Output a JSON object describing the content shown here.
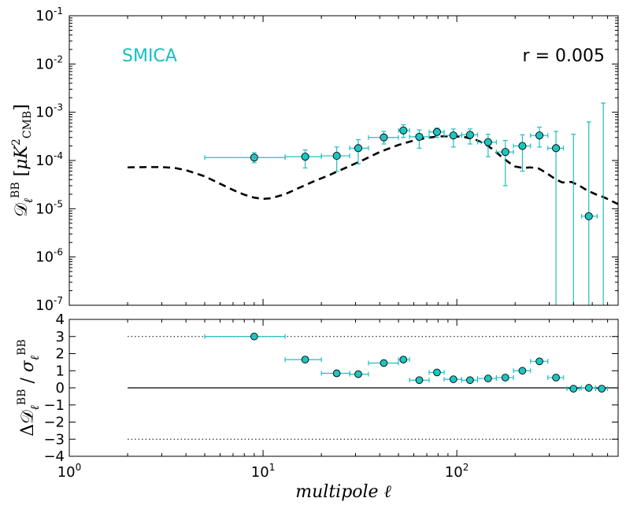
{
  "colors": {
    "marker": "#1fc4c0",
    "errorbar": "#1fbfbf",
    "model": "#000000",
    "annotation_label": "#14c0c0"
  },
  "chart_data": [
    {
      "type": "scatter",
      "panel": "top",
      "xscale": "log",
      "yscale": "log",
      "xlim": [
        1,
        680
      ],
      "ylim": [
        1e-07,
        0.1
      ],
      "ylabel": "D_ℓ^BB [μK²_CMB]",
      "ytick_labels": [
        {
          "value": 1e-07,
          "mantissa": "10",
          "exp": "-7"
        },
        {
          "value": 1e-06,
          "mantissa": "10",
          "exp": "-6"
        },
        {
          "value": 1e-05,
          "mantissa": "10",
          "exp": "-5"
        },
        {
          "value": 0.0001,
          "mantissa": "10",
          "exp": "-4"
        },
        {
          "value": 0.001,
          "mantissa": "10",
          "exp": "-3"
        },
        {
          "value": 0.01,
          "mantissa": "10",
          "exp": "-2"
        },
        {
          "value": 0.1,
          "mantissa": "10",
          "exp": "-1"
        }
      ],
      "annotations": {
        "method": "SMICA",
        "r_value": "r = 0.005"
      },
      "legend": "none",
      "series": [
        {
          "name": "SMICA bandpowers",
          "points": [
            {
              "x": 9,
              "xlo": 5,
              "xhi": 13,
              "y": 0.000115,
              "ylo": 9e-05,
              "yhi": 0.000145
            },
            {
              "x": 16.5,
              "xlo": 13,
              "xhi": 20,
              "y": 0.00012,
              "ylo": 7e-05,
              "yhi": 0.000165
            },
            {
              "x": 24,
              "xlo": 20,
              "xhi": 28,
              "y": 0.000125,
              "ylo": 6e-05,
              "yhi": 0.00019
            },
            {
              "x": 31,
              "xlo": 28,
              "xhi": 35,
              "y": 0.00018,
              "ylo": 8.5e-05,
              "yhi": 0.00027
            },
            {
              "x": 42,
              "xlo": 35,
              "xhi": 50,
              "y": 0.0003,
              "ylo": 0.00022,
              "yhi": 0.0004
            },
            {
              "x": 53,
              "xlo": 50,
              "xhi": 57,
              "y": 0.00042,
              "ylo": 0.0003,
              "yhi": 0.00055
            },
            {
              "x": 64,
              "xlo": 57,
              "xhi": 72,
              "y": 0.00031,
              "ylo": 0.00018,
              "yhi": 0.00043
            },
            {
              "x": 79,
              "xlo": 72,
              "xhi": 86,
              "y": 0.00039,
              "ylo": 0.0003,
              "yhi": 0.00047
            },
            {
              "x": 96,
              "xlo": 86,
              "xhi": 106,
              "y": 0.00033,
              "ylo": 0.00019,
              "yhi": 0.00045
            },
            {
              "x": 117,
              "xlo": 106,
              "xhi": 128,
              "y": 0.00034,
              "ylo": 0.00022,
              "yhi": 0.00045
            },
            {
              "x": 145,
              "xlo": 128,
              "xhi": 160,
              "y": 0.00024,
              "ylo": 0.00012,
              "yhi": 0.00035
            },
            {
              "x": 178,
              "xlo": 160,
              "xhi": 196,
              "y": 0.00015,
              "ylo": 3e-05,
              "yhi": 0.00026
            },
            {
              "x": 218,
              "xlo": 196,
              "xhi": 240,
              "y": 0.0002,
              "ylo": 6e-05,
              "yhi": 0.00034
            },
            {
              "x": 267,
              "xlo": 240,
              "xhi": 295,
              "y": 0.00033,
              "ylo": 0.00019,
              "yhi": 0.00049
            },
            {
              "x": 325,
              "xlo": 295,
              "xhi": 355,
              "y": 0.00018,
              "ylo": 1e-07,
              "yhi": 0.0004
            },
            {
              "x": 400,
              "xlo": 400,
              "xhi": 400,
              "y": null,
              "ylo": 1e-07,
              "yhi": 0.00035
            },
            {
              "x": 480,
              "xlo": 440,
              "xhi": 530,
              "y": 7e-06,
              "ylo": 1e-07,
              "yhi": 0.00063
            },
            {
              "x": 570,
              "xlo": 570,
              "xhi": 570,
              "y": null,
              "ylo": 1e-07,
              "yhi": 0.00155
            }
          ]
        },
        {
          "name": "Model r = 0.005",
          "style": "dashed",
          "x": [
            2,
            2.5,
            3,
            3.5,
            4,
            5,
            6,
            7,
            8,
            9,
            10,
            11,
            13,
            15,
            18,
            22,
            27,
            33,
            40,
            50,
            60,
            70,
            80,
            95,
            110,
            125,
            140,
            155,
            170,
            185,
            200,
            220,
            240,
            265,
            290,
            320,
            350,
            390,
            430,
            470,
            520,
            580,
            640,
            680
          ],
          "y": [
            7.2e-05,
            7.3e-05,
            7.3e-05,
            7e-05,
            6.3e-05,
            4.7e-05,
            3.3e-05,
            2.45e-05,
            1.95e-05,
            1.7e-05,
            1.6e-05,
            1.65e-05,
            2e-05,
            2.6e-05,
            3.6e-05,
            5e-05,
            7.2e-05,
            0.000103,
            0.00015,
            0.00021,
            0.00026,
            0.000295,
            0.000315,
            0.00032,
            0.000305,
            0.00027,
            0.00022,
            0.000165,
            0.00012,
            9.2e-05,
            7.5e-05,
            7e-05,
            7.2e-05,
            6.8e-05,
            5.5e-05,
            4.2e-05,
            3.5e-05,
            3.6e-05,
            3e-05,
            2.4e-05,
            2e-05,
            1.7e-05,
            1.4e-05,
            1.25e-05
          ]
        }
      ]
    },
    {
      "type": "scatter",
      "panel": "bottom",
      "xscale": "log",
      "xlim": [
        1,
        680
      ],
      "ylim": [
        -4,
        4
      ],
      "yticks": [
        "-4",
        "-3",
        "-2",
        "-1",
        "0",
        "1",
        "2",
        "3",
        "4"
      ],
      "xtick_labels": [
        {
          "value": 1,
          "mantissa": "10",
          "exp": "0"
        },
        {
          "value": 10,
          "mantissa": "10",
          "exp": "1"
        },
        {
          "value": 100,
          "mantissa": "10",
          "exp": "2"
        }
      ],
      "xlabel": "multipole ℓ",
      "ylabel": "ΔD_ℓ^BB / σ_ℓ^BB",
      "reference_lines": [
        {
          "y": 3,
          "style": "dotted"
        },
        {
          "y": 0,
          "style": "solid"
        },
        {
          "y": -3,
          "style": "dotted"
        }
      ],
      "legend": "none",
      "series": [
        {
          "name": "Normalized residuals",
          "points": [
            {
              "x": 9,
              "xlo": 5,
              "xhi": 13,
              "y": 3.0
            },
            {
              "x": 16.5,
              "xlo": 13,
              "xhi": 20,
              "y": 1.65
            },
            {
              "x": 24,
              "xlo": 20,
              "xhi": 28,
              "y": 0.85
            },
            {
              "x": 31,
              "xlo": 28,
              "xhi": 35,
              "y": 0.8
            },
            {
              "x": 42,
              "xlo": 35,
              "xhi": 50,
              "y": 1.45
            },
            {
              "x": 53,
              "xlo": 50,
              "xhi": 57,
              "y": 1.65
            },
            {
              "x": 64,
              "xlo": 57,
              "xhi": 72,
              "y": 0.45
            },
            {
              "x": 79,
              "xlo": 72,
              "xhi": 86,
              "y": 0.9
            },
            {
              "x": 96,
              "xlo": 86,
              "xhi": 106,
              "y": 0.5
            },
            {
              "x": 117,
              "xlo": 106,
              "xhi": 128,
              "y": 0.45
            },
            {
              "x": 145,
              "xlo": 128,
              "xhi": 160,
              "y": 0.55
            },
            {
              "x": 178,
              "xlo": 160,
              "xhi": 196,
              "y": 0.6
            },
            {
              "x": 218,
              "xlo": 196,
              "xhi": 240,
              "y": 1.0
            },
            {
              "x": 267,
              "xlo": 240,
              "xhi": 295,
              "y": 1.55
            },
            {
              "x": 325,
              "xlo": 295,
              "xhi": 355,
              "y": 0.6
            },
            {
              "x": 400,
              "xlo": 370,
              "xhi": 430,
              "y": -0.05
            },
            {
              "x": 480,
              "xlo": 440,
              "xhi": 520,
              "y": 0.0
            },
            {
              "x": 560,
              "xlo": 520,
              "xhi": 600,
              "y": -0.05
            }
          ]
        }
      ]
    }
  ]
}
